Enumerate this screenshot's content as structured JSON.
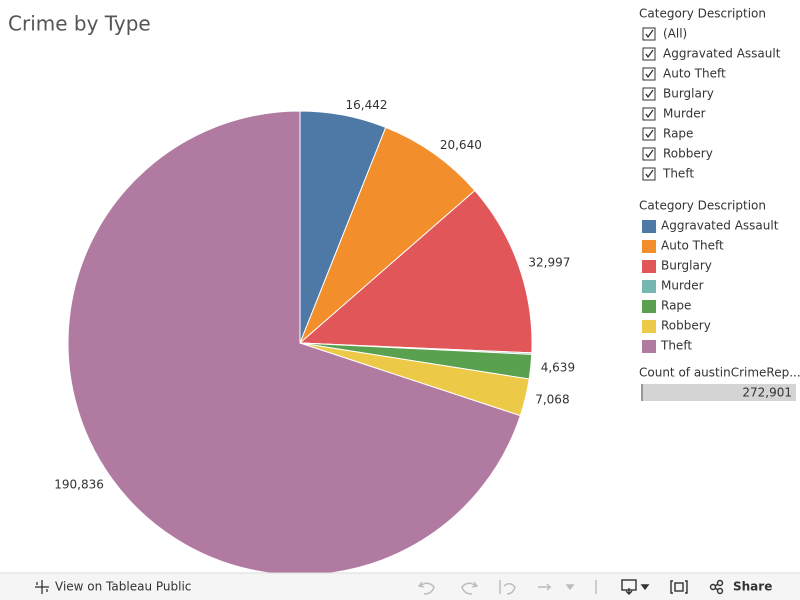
{
  "chart_data": {
    "type": "pie",
    "title": "Crime by Type",
    "categories": [
      "Aggravated Assault",
      "Auto Theft",
      "Burglary",
      "Murder",
      "Rape",
      "Robbery",
      "Theft"
    ],
    "values": [
      16442,
      20640,
      32997,
      279,
      4639,
      7068,
      190836
    ],
    "value_labels": [
      "16,442",
      "20,640",
      "32,997",
      null,
      "4,639",
      "7,068",
      "190,836"
    ],
    "colors": [
      "#4e79a7",
      "#f28e2b",
      "#e15759",
      "#76b7b2",
      "#59a14f",
      "#edc948",
      "#b07aa1"
    ],
    "legend_title": "Category Description",
    "legend": "right"
  },
  "filter": {
    "title": "Category Description",
    "items": [
      "(All)",
      "Aggravated Assault",
      "Auto Theft",
      "Burglary",
      "Murder",
      "Rape",
      "Robbery",
      "Theft"
    ]
  },
  "count": {
    "title": "Count of austinCrimeRep...",
    "value": "272,901"
  },
  "footer": {
    "view": "View on Tableau Public",
    "share": "Share"
  }
}
